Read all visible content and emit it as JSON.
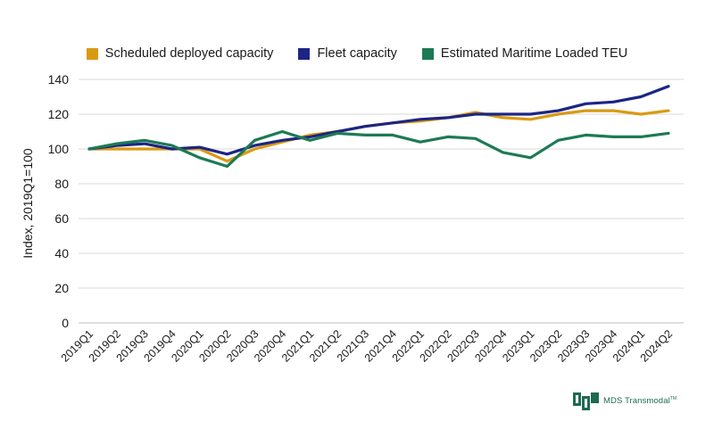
{
  "chart_data": {
    "type": "line",
    "ylabel": "Index, 2019Q1=100",
    "xlabel": "",
    "ylim": [
      0,
      140
    ],
    "yticks": [
      0,
      20,
      40,
      60,
      80,
      100,
      120,
      140
    ],
    "grid": true,
    "legend_position": "top",
    "categories": [
      "2019Q1",
      "2019Q2",
      "2019Q3",
      "2019Q4",
      "2020Q1",
      "2020Q2",
      "2020Q3",
      "2020Q4",
      "2021Q1",
      "2021Q2",
      "2021Q3",
      "2021Q4",
      "2022Q1",
      "2022Q2",
      "2022Q3",
      "2022Q4",
      "2023Q1",
      "2023Q2",
      "2023Q3",
      "2023Q4",
      "2024Q1",
      "2024Q2"
    ],
    "series": [
      {
        "name": "Scheduled deployed capacity",
        "color": "#d99a13",
        "values": [
          100,
          100,
          100,
          100,
          100,
          93,
          100,
          104,
          108,
          110,
          113,
          115,
          116,
          118,
          121,
          118,
          117,
          120,
          122,
          122,
          120,
          122
        ]
      },
      {
        "name": "Fleet capacity",
        "color": "#1c2585",
        "values": [
          100,
          102,
          103,
          100,
          101,
          97,
          102,
          105,
          107,
          110,
          113,
          115,
          117,
          118,
          120,
          120,
          120,
          122,
          126,
          127,
          130,
          136
        ]
      },
      {
        "name": "Estimated Maritime Loaded TEU",
        "color": "#1d7a55",
        "values": [
          100,
          103,
          105,
          102,
          95,
          90,
          105,
          110,
          105,
          109,
          108,
          108,
          104,
          107,
          106,
          98,
          95,
          105,
          108,
          107,
          107,
          109
        ]
      }
    ]
  },
  "logo": {
    "text": "MDS Transmodal",
    "tm": "TM"
  }
}
